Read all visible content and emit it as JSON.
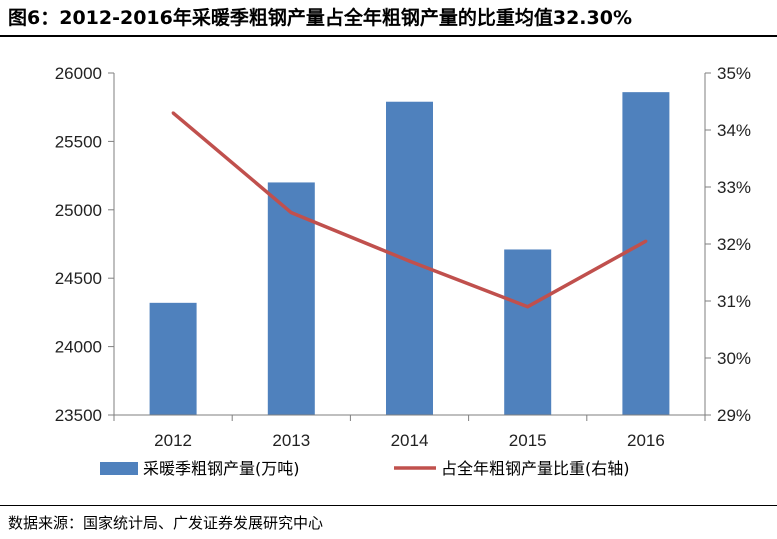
{
  "title": "图6：2012-2016年采暖季粗钢产量占全年粗钢产量的比重均值32.30%",
  "source": "数据来源：国家统计局、广发证券发展研究中心",
  "chart_data": {
    "type": "bar",
    "categories": [
      "2012",
      "2013",
      "2014",
      "2015",
      "2016"
    ],
    "series": [
      {
        "name": "采暖季粗钢产量(万吨)",
        "type": "bar",
        "axis": "left",
        "color": "#4F81BD",
        "values": [
          24320,
          25200,
          25790,
          24710,
          25860
        ]
      },
      {
        "name": "占全年粗钢产量比重(右轴)",
        "type": "line",
        "axis": "right",
        "color": "#C0504D",
        "values": [
          34.3,
          32.55,
          31.7,
          30.9,
          32.05
        ]
      }
    ],
    "y_left": {
      "min": 23500,
      "max": 26000,
      "ticks": [
        "23500",
        "24000",
        "24500",
        "25000",
        "25500",
        "26000"
      ]
    },
    "y_right": {
      "min": 29,
      "max": 35,
      "ticks": [
        "29%",
        "30%",
        "31%",
        "32%",
        "33%",
        "34%",
        "35%"
      ]
    },
    "grid": false,
    "legend_position": "bottom"
  }
}
